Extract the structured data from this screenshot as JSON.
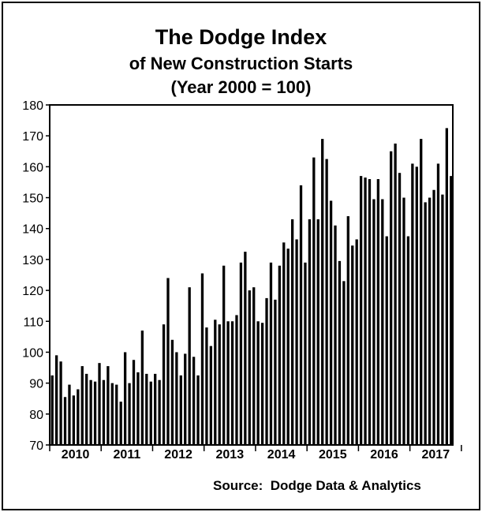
{
  "chart_data": {
    "type": "bar",
    "title": "The Dodge Index",
    "subtitle": "of New Construction Starts",
    "subtitle2": "(Year 2000 = 100)",
    "source": "Source:  Dodge Data & Analytics",
    "ylim": [
      70,
      180
    ],
    "yticks": [
      70,
      80,
      90,
      100,
      110,
      120,
      130,
      140,
      150,
      160,
      170,
      180
    ],
    "grid": false,
    "legend": "none",
    "bar_color": "#000000",
    "year_labels": [
      "2010",
      "2011",
      "2012",
      "2013",
      "2014",
      "2015",
      "2016",
      "2017"
    ],
    "values": [
      92.5,
      99,
      97,
      85.5,
      89.5,
      86,
      88,
      95.5,
      93,
      91,
      90.5,
      96.5,
      91,
      95.5,
      90,
      89.5,
      84,
      100,
      90,
      97.5,
      93.5,
      107,
      93,
      90.5,
      93,
      91,
      109,
      124,
      104,
      100,
      92.5,
      99.5,
      121,
      98.5,
      92.5,
      125.5,
      108,
      102,
      110.5,
      109,
      128,
      110,
      110,
      112,
      129,
      132.5,
      120,
      121,
      110,
      109.5,
      117.5,
      129,
      117,
      128,
      135.5,
      133.5,
      143,
      136.5,
      154,
      129,
      143,
      163,
      143,
      169,
      162.5,
      149,
      141,
      129.5,
      123,
      144,
      134.5,
      136.5,
      157,
      156.5,
      156,
      149.5,
      156,
      149.5,
      137.5,
      165,
      167.5,
      158,
      150,
      137.5,
      161,
      160,
      169,
      148.5,
      150,
      152.5,
      161,
      151,
      172.5,
      157
    ]
  }
}
